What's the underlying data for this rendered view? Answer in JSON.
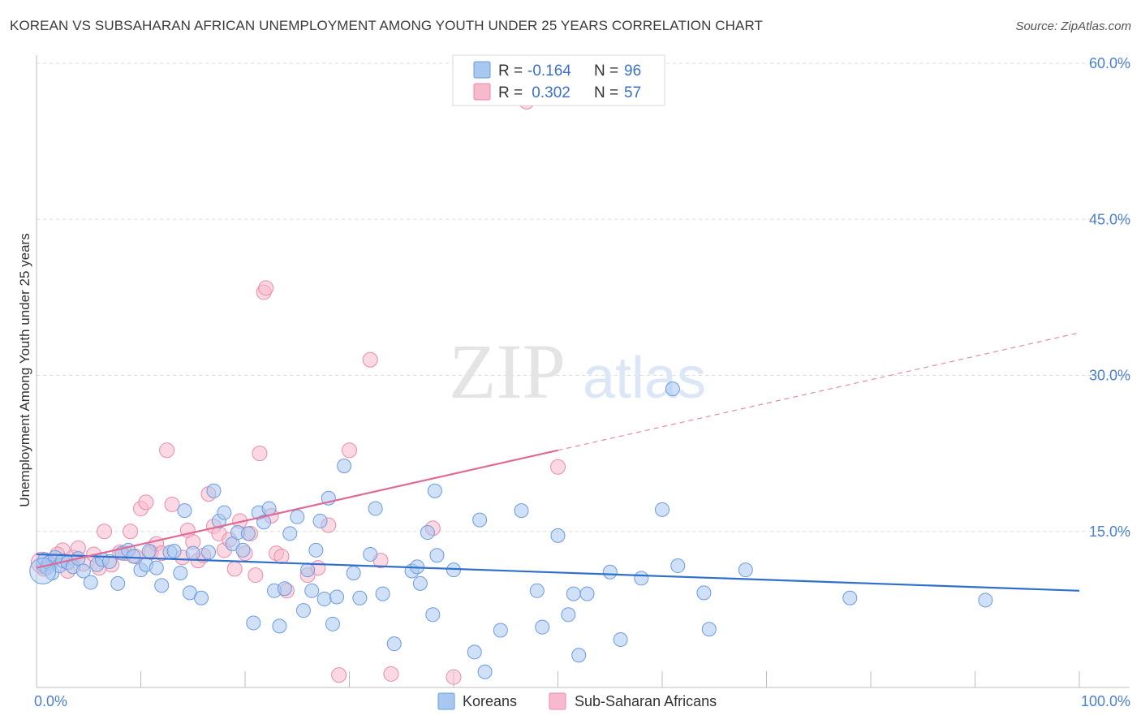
{
  "title": "KOREAN VS SUBSAHARAN AFRICAN UNEMPLOYMENT AMONG YOUTH UNDER 25 YEARS CORRELATION CHART",
  "source": "Source: ZipAtlas.com",
  "watermark": {
    "zip": "ZIP",
    "atlas": "atlas"
  },
  "colors": {
    "korean_fill": "#a9c8f0",
    "korean_stroke": "#6a9be0",
    "korean_line": "#2f6fcd",
    "ssa_fill": "#f7b9cc",
    "ssa_stroke": "#ec89a8",
    "ssa_line": "#e06a95",
    "grid": "#dcdcdc",
    "tick_label": "#4a7fcf"
  },
  "legend": {
    "rows": [
      {
        "r_label": "R = ",
        "r_value": "-0.164",
        "n_label": "N = ",
        "n_value": "96"
      },
      {
        "r_label": "R = ",
        "r_value": " 0.302",
        "n_label": "N = ",
        "n_value": "57"
      }
    ]
  },
  "chart_data": {
    "type": "scatter",
    "title": "KOREAN VS SUBSAHARAN AFRICAN UNEMPLOYMENT AMONG YOUTH UNDER 25 YEARS CORRELATION CHART",
    "xlabel": "",
    "ylabel": "Unemployment Among Youth under 25 years",
    "xlim": [
      0,
      100
    ],
    "ylim": [
      0,
      60
    ],
    "x_tick_labels": [
      "0.0%",
      "100.0%"
    ],
    "y_ticks": [
      15,
      30,
      45,
      60
    ],
    "y_tick_labels": [
      "15.0%",
      "30.0%",
      "45.0%",
      "60.0%"
    ],
    "grid": true,
    "legend_position": "top-center",
    "series": [
      {
        "name": "Koreans",
        "trend": {
          "x": [
            0,
            100
          ],
          "y": [
            12.8,
            9.3
          ]
        },
        "points": [
          [
            0.6,
            11.8
          ],
          [
            0.8,
            12.3
          ],
          [
            1.0,
            11.5
          ],
          [
            1.2,
            12.0
          ],
          [
            1.5,
            11.0
          ],
          [
            1.8,
            12.5
          ],
          [
            2.2,
            11.7
          ],
          [
            2.5,
            12.2
          ],
          [
            3.0,
            12.0
          ],
          [
            3.5,
            11.6
          ],
          [
            4.0,
            12.4
          ],
          [
            4.5,
            11.2
          ],
          [
            5.2,
            10.1
          ],
          [
            5.8,
            11.8
          ],
          [
            6.3,
            12.3
          ],
          [
            7.0,
            12.1
          ],
          [
            7.8,
            10.0
          ],
          [
            8.2,
            12.9
          ],
          [
            8.8,
            13.2
          ],
          [
            9.3,
            12.6
          ],
          [
            10.0,
            11.3
          ],
          [
            10.5,
            11.8
          ],
          [
            10.8,
            13.1
          ],
          [
            11.5,
            11.5
          ],
          [
            12.0,
            9.8
          ],
          [
            12.8,
            13.0
          ],
          [
            13.2,
            13.1
          ],
          [
            13.8,
            11.0
          ],
          [
            14.2,
            17.0
          ],
          [
            14.7,
            9.1
          ],
          [
            15.0,
            12.9
          ],
          [
            15.8,
            8.6
          ],
          [
            16.5,
            13.0
          ],
          [
            17.0,
            18.9
          ],
          [
            17.5,
            16.0
          ],
          [
            18.0,
            16.8
          ],
          [
            18.8,
            13.8
          ],
          [
            19.3,
            14.9
          ],
          [
            19.8,
            13.2
          ],
          [
            20.3,
            14.8
          ],
          [
            20.8,
            6.2
          ],
          [
            21.3,
            16.8
          ],
          [
            21.8,
            15.9
          ],
          [
            22.3,
            17.2
          ],
          [
            22.8,
            9.3
          ],
          [
            23.3,
            5.9
          ],
          [
            23.8,
            9.5
          ],
          [
            24.3,
            14.8
          ],
          [
            25.0,
            16.4
          ],
          [
            25.6,
            7.4
          ],
          [
            26.0,
            11.3
          ],
          [
            26.4,
            9.3
          ],
          [
            26.8,
            13.2
          ],
          [
            27.2,
            16.0
          ],
          [
            27.6,
            8.5
          ],
          [
            28.0,
            18.2
          ],
          [
            28.4,
            6.1
          ],
          [
            28.8,
            8.7
          ],
          [
            29.5,
            21.3
          ],
          [
            30.4,
            11.0
          ],
          [
            31.0,
            8.6
          ],
          [
            32.0,
            12.8
          ],
          [
            32.5,
            17.2
          ],
          [
            33.2,
            9.0
          ],
          [
            34.3,
            4.2
          ],
          [
            36.0,
            11.2
          ],
          [
            36.5,
            11.6
          ],
          [
            36.8,
            10.0
          ],
          [
            37.5,
            14.9
          ],
          [
            38.0,
            7.0
          ],
          [
            38.2,
            18.9
          ],
          [
            38.4,
            12.7
          ],
          [
            40.0,
            11.3
          ],
          [
            42.0,
            3.4
          ],
          [
            42.5,
            16.1
          ],
          [
            44.5,
            5.5
          ],
          [
            46.5,
            17.0
          ],
          [
            48.0,
            9.3
          ],
          [
            48.5,
            5.8
          ],
          [
            50.0,
            14.6
          ],
          [
            51.0,
            7.0
          ],
          [
            51.5,
            9.0
          ],
          [
            52.0,
            3.1
          ],
          [
            52.8,
            9.0
          ],
          [
            55.0,
            11.1
          ],
          [
            56.0,
            4.6
          ],
          [
            58.0,
            10.5
          ],
          [
            60.0,
            17.1
          ],
          [
            61.0,
            28.7
          ],
          [
            61.5,
            11.7
          ],
          [
            64.0,
            9.1
          ],
          [
            64.5,
            5.6
          ],
          [
            68.0,
            11.3
          ],
          [
            78.0,
            8.6
          ],
          [
            91.0,
            8.4
          ],
          [
            43.0,
            1.5
          ]
        ]
      },
      {
        "name": "Sub-Saharan Africans",
        "trend": {
          "x": [
            0,
            50
          ],
          "y": [
            11.5,
            22.8
          ]
        },
        "trend_dashed": {
          "x": [
            50,
            100
          ],
          "y": [
            22.8,
            34.1
          ]
        },
        "points": [
          [
            0.7,
            11.4
          ],
          [
            1.5,
            12.2
          ],
          [
            2.5,
            13.2
          ],
          [
            3.5,
            12.5
          ],
          [
            4.5,
            11.9
          ],
          [
            5.5,
            12.8
          ],
          [
            6.5,
            15.0
          ],
          [
            7.2,
            11.8
          ],
          [
            8.5,
            12.9
          ],
          [
            9.0,
            15.0
          ],
          [
            9.5,
            12.6
          ],
          [
            10.0,
            17.2
          ],
          [
            10.5,
            17.8
          ],
          [
            11.0,
            13.0
          ],
          [
            11.5,
            13.8
          ],
          [
            12.0,
            12.9
          ],
          [
            12.5,
            22.8
          ],
          [
            13.0,
            17.6
          ],
          [
            14.0,
            12.5
          ],
          [
            14.5,
            15.1
          ],
          [
            15.0,
            14.0
          ],
          [
            15.5,
            12.2
          ],
          [
            16.0,
            12.7
          ],
          [
            16.5,
            18.6
          ],
          [
            17.0,
            15.5
          ],
          [
            17.5,
            14.8
          ],
          [
            18.0,
            13.2
          ],
          [
            18.5,
            14.2
          ],
          [
            19.0,
            11.4
          ],
          [
            19.5,
            16.0
          ],
          [
            20.0,
            12.9
          ],
          [
            20.5,
            14.8
          ],
          [
            21.0,
            10.8
          ],
          [
            21.4,
            22.5
          ],
          [
            21.8,
            38.0
          ],
          [
            22.0,
            38.4
          ],
          [
            22.5,
            16.5
          ],
          [
            23.0,
            12.9
          ],
          [
            23.5,
            12.6
          ],
          [
            24.0,
            9.3
          ],
          [
            26.0,
            10.8
          ],
          [
            27.0,
            11.5
          ],
          [
            28.0,
            15.6
          ],
          [
            30.0,
            22.8
          ],
          [
            32.0,
            31.5
          ],
          [
            34.0,
            1.3
          ],
          [
            38.0,
            15.3
          ],
          [
            40.0,
            1.0
          ],
          [
            50.0,
            21.2
          ],
          [
            47.0,
            56.3
          ],
          [
            6.0,
            11.5
          ],
          [
            8.0,
            13.0
          ],
          [
            2.0,
            12.8
          ],
          [
            3.0,
            11.2
          ],
          [
            4.0,
            13.4
          ],
          [
            29.0,
            1.2
          ],
          [
            33.0,
            12.2
          ]
        ]
      }
    ]
  },
  "bottom_legend": {
    "items": [
      {
        "label": "Koreans"
      },
      {
        "label": "Sub-Saharan Africans"
      }
    ]
  }
}
